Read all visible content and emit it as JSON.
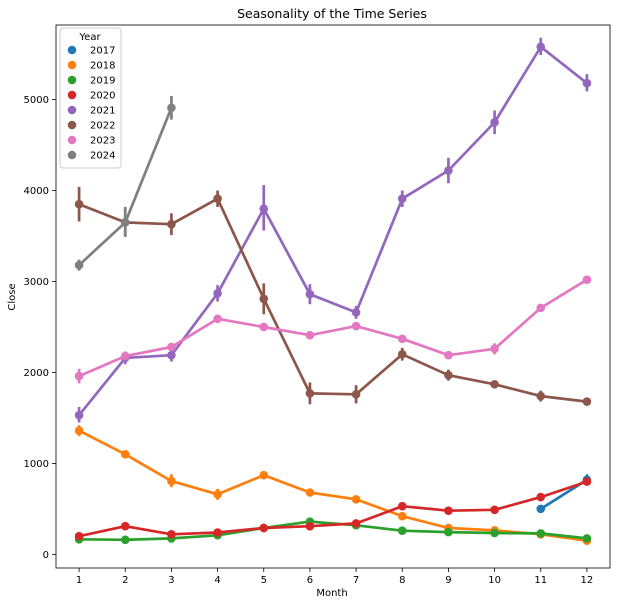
{
  "chart_data": {
    "type": "line",
    "title": "Seasonality of the Time Series",
    "xlabel": "Month",
    "ylabel": "Close",
    "categories": [
      "1",
      "2",
      "3",
      "4",
      "5",
      "6",
      "7",
      "8",
      "9",
      "10",
      "11",
      "12"
    ],
    "ylim": [
      -150,
      5820
    ],
    "yticks": [
      0,
      1000,
      2000,
      3000,
      4000,
      5000
    ],
    "grid": false,
    "legend": {
      "title": "Year",
      "placement": "top-left"
    },
    "series": [
      {
        "name": "2017",
        "color": "#1f77b4",
        "values": [
          null,
          null,
          null,
          null,
          null,
          null,
          null,
          null,
          null,
          null,
          500,
          820
        ],
        "errors": [
          null,
          null,
          null,
          null,
          null,
          null,
          null,
          null,
          null,
          null,
          [
            500,
            500
          ],
          [
            760,
            880
          ]
        ]
      },
      {
        "name": "2018",
        "color": "#ff7f0e",
        "values": [
          1360,
          1100,
          805,
          660,
          870,
          680,
          605,
          420,
          290,
          265,
          220,
          150
        ],
        "errors": [
          [
            1300,
            1420
          ],
          [
            1080,
            1120
          ],
          [
            740,
            880
          ],
          [
            600,
            720
          ],
          [
            850,
            890
          ],
          [
            660,
            700
          ],
          [
            590,
            620
          ],
          [
            400,
            440
          ],
          [
            270,
            310
          ],
          [
            245,
            285
          ],
          [
            200,
            240
          ],
          [
            130,
            170
          ]
        ]
      },
      {
        "name": "2019",
        "color": "#2ca02c",
        "values": [
          165,
          160,
          175,
          210,
          290,
          360,
          320,
          260,
          245,
          235,
          230,
          175
        ],
        "errors": [
          [
            150,
            180
          ],
          [
            150,
            170
          ],
          [
            160,
            190
          ],
          [
            195,
            225
          ],
          [
            275,
            305
          ],
          [
            340,
            380
          ],
          [
            300,
            340
          ],
          [
            245,
            275
          ],
          [
            230,
            260
          ],
          [
            220,
            250
          ],
          [
            215,
            245
          ],
          [
            160,
            190
          ]
        ]
      },
      {
        "name": "2020",
        "color": "#d62728",
        "values": [
          200,
          310,
          220,
          240,
          290,
          310,
          340,
          530,
          480,
          490,
          630,
          800
        ],
        "errors": [
          [
            185,
            215
          ],
          [
            295,
            325
          ],
          [
            205,
            235
          ],
          [
            225,
            255
          ],
          [
            275,
            305
          ],
          [
            295,
            325
          ],
          [
            320,
            360
          ],
          [
            510,
            550
          ],
          [
            460,
            500
          ],
          [
            470,
            510
          ],
          [
            610,
            650
          ],
          [
            775,
            825
          ]
        ]
      },
      {
        "name": "2021",
        "color": "#9467bd",
        "values": [
          1530,
          2160,
          2190,
          2870,
          3800,
          2860,
          2660,
          3910,
          4220,
          4750,
          5580,
          5180
        ],
        "errors": [
          [
            1450,
            1620
          ],
          [
            2090,
            2230
          ],
          [
            2120,
            2260
          ],
          [
            2780,
            2960
          ],
          [
            3560,
            4060
          ],
          [
            2750,
            2970
          ],
          [
            2590,
            2730
          ],
          [
            3820,
            4000
          ],
          [
            4080,
            4360
          ],
          [
            4620,
            4880
          ],
          [
            5490,
            5680
          ],
          [
            5090,
            5280
          ]
        ]
      },
      {
        "name": "2022",
        "color": "#8c564b",
        "values": [
          3850,
          3650,
          3630,
          3910,
          2810,
          1770,
          1760,
          2200,
          1970,
          1870,
          1740,
          1680
        ],
        "errors": [
          [
            3660,
            4040
          ],
          [
            3500,
            3800
          ],
          [
            3510,
            3750
          ],
          [
            3820,
            4000
          ],
          [
            2640,
            2980
          ],
          [
            1650,
            1890
          ],
          [
            1660,
            1860
          ],
          [
            2130,
            2270
          ],
          [
            1910,
            2030
          ],
          [
            1830,
            1910
          ],
          [
            1680,
            1800
          ],
          [
            1660,
            1700
          ]
        ]
      },
      {
        "name": "2023",
        "color": "#e377c2",
        "values": [
          1960,
          2180,
          2280,
          2590,
          2500,
          2410,
          2510,
          2370,
          2190,
          2260,
          2710,
          3020
        ],
        "errors": [
          [
            1880,
            2040
          ],
          [
            2150,
            2210
          ],
          [
            2240,
            2320
          ],
          [
            2550,
            2630
          ],
          [
            2480,
            2520
          ],
          [
            2380,
            2440
          ],
          [
            2480,
            2540
          ],
          [
            2340,
            2400
          ],
          [
            2160,
            2220
          ],
          [
            2200,
            2320
          ],
          [
            2670,
            2750
          ],
          [
            2990,
            3050
          ]
        ]
      },
      {
        "name": "2024",
        "color": "#7f7f7f",
        "values": [
          3180,
          3650,
          4910,
          null,
          null,
          null,
          null,
          null,
          null,
          null,
          null,
          null
        ],
        "errors": [
          [
            3120,
            3240
          ],
          [
            3490,
            3820
          ],
          [
            4780,
            5040
          ],
          null,
          null,
          null,
          null,
          null,
          null,
          null,
          null,
          null
        ]
      }
    ]
  }
}
